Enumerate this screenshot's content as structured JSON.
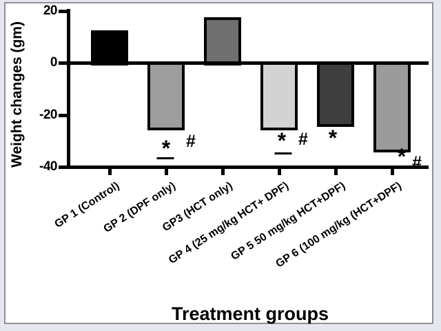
{
  "chart_data": {
    "type": "bar",
    "title": "",
    "xlabel": "Treatment groups",
    "ylabel": "Weight changes (gm)",
    "ylim": [
      -40,
      20
    ],
    "ytick_values": [
      20,
      0,
      -20,
      -40
    ],
    "ytick_labels": [
      "20",
      "0",
      "-20",
      "-40"
    ],
    "categories": [
      "GP 1 (Control)",
      "GP 2 (DPF only)",
      "GP3 (HCT only)",
      "GP 4 (25 mg/kg HCT+ DPF)",
      "GP 5 50 mg/kg HCT+DPF)",
      "GP 6 (100 mg/kg (HCT+DPF)"
    ],
    "values": [
      12.5,
      -25.5,
      17.5,
      -25.5,
      -24,
      -34
    ],
    "bar_colors": [
      "#000000",
      "#9d9d9d",
      "#6f6f6f",
      "#d3d3d3",
      "#3e3e3e",
      "#9b9b9b"
    ],
    "annotations": [
      {
        "group": 2,
        "symbols": [
          "*",
          "#"
        ],
        "star_underlined": true
      },
      {
        "group": 4,
        "symbols": [
          "*",
          "#"
        ],
        "star_underlined": true
      },
      {
        "group": 5,
        "symbols": [
          "*"
        ],
        "star_underlined": false
      },
      {
        "group": 6,
        "symbols": [
          "*",
          "#"
        ],
        "star_underlined": false
      }
    ],
    "grid": false,
    "legend": false,
    "axis_color": "#000000"
  }
}
